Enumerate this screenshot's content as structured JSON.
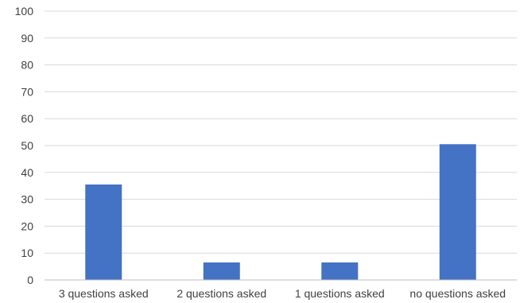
{
  "chart_data": {
    "type": "bar",
    "categories": [
      "3 questions asked",
      "2 questions asked",
      "1 questions asked",
      "no questions asked"
    ],
    "values": [
      35.5,
      6.5,
      6.5,
      50.5
    ],
    "ylim": [
      0,
      100
    ],
    "yticks": [
      "0",
      "10",
      "20",
      "30",
      "40",
      "50",
      "60",
      "70",
      "80",
      "90",
      "100"
    ],
    "grid": true,
    "legend": "none",
    "colors": {
      "bar": "#4472C4",
      "grid": "#D9D9D9",
      "axis": "#BFBFBF",
      "text": "#404040"
    }
  }
}
